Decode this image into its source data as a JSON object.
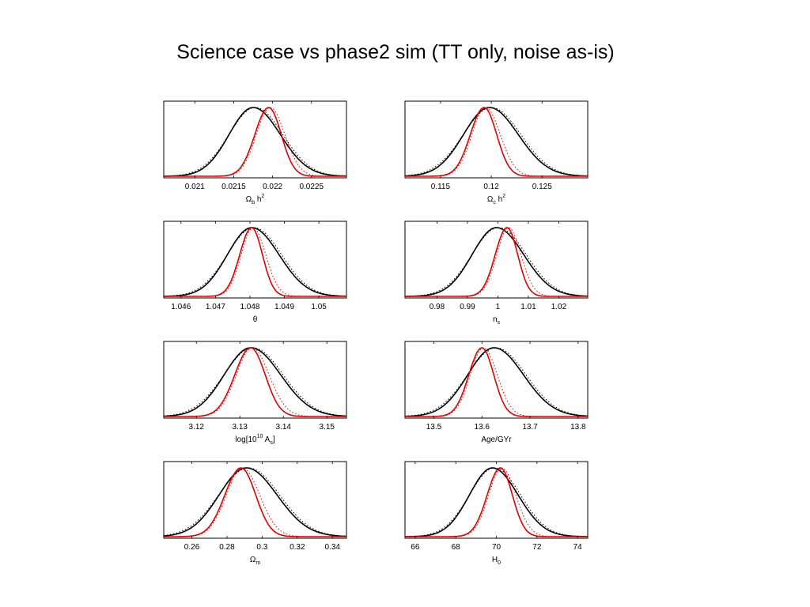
{
  "title": "Science case vs phase2 sim (TT only, noise as-is)",
  "colors": {
    "science_case": "#000000",
    "phase2_sim": "#e00000",
    "frame": "#000000"
  },
  "series_styles": {
    "science_case": "solid",
    "science_case_dotted": "dotted",
    "phase2_sim": "solid",
    "phase2_sim_dotted": "dotted"
  },
  "chart_data": [
    {
      "type": "line",
      "xlabel": {
        "base": "Ω",
        "sub": "b",
        "rest": " h",
        "sup": "2"
      },
      "xlim": [
        0.0206,
        0.02295
      ],
      "ylim": [
        0,
        1
      ],
      "ticks": [
        0.021,
        0.0215,
        0.022,
        0.0225
      ],
      "tick_labels": [
        "0.021",
        "0.0215",
        "0.022",
        "0.0225"
      ],
      "black": {
        "mean": 0.02175,
        "sigma": 0.00033
      },
      "red": {
        "mean": 0.02195,
        "sigma": 0.00017
      }
    },
    {
      "type": "line",
      "xlabel": {
        "base": "Ω",
        "sub": "c",
        "rest": " h",
        "sup": "2"
      },
      "xlim": [
        0.1115,
        0.1295
      ],
      "ylim": [
        0,
        1
      ],
      "ticks": [
        0.115,
        0.12,
        0.125
      ],
      "tick_labels": [
        "0.115",
        "0.12",
        "0.125"
      ],
      "black": {
        "mean": 0.1198,
        "sigma": 0.0027
      },
      "red": {
        "mean": 0.1193,
        "sigma": 0.0013
      }
    },
    {
      "type": "line",
      "xlabel": {
        "base": "θ",
        "sub": "",
        "rest": "",
        "sup": ""
      },
      "xlim": [
        1.0455,
        1.0508
      ],
      "ylim": [
        0,
        1
      ],
      "ticks": [
        1.046,
        1.047,
        1.048,
        1.049,
        1.05
      ],
      "tick_labels": [
        "1.046",
        "1.047",
        "1.048",
        "1.049",
        "1.05"
      ],
      "black": {
        "mean": 1.04805,
        "sigma": 0.00075
      },
      "red": {
        "mean": 1.04805,
        "sigma": 0.00033
      }
    },
    {
      "type": "line",
      "xlabel": {
        "base": "n",
        "sub": "s",
        "rest": "",
        "sup": ""
      },
      "xlim": [
        0.9695,
        1.0295
      ],
      "ylim": [
        0,
        1
      ],
      "ticks": [
        0.98,
        0.99,
        1,
        1.01,
        1.02
      ],
      "tick_labels": [
        "0.98",
        "0.99",
        "1",
        "1.01",
        "1.02"
      ],
      "black": {
        "mean": 0.9995,
        "sigma": 0.0085
      },
      "red": {
        "mean": 1.003,
        "sigma": 0.0037
      }
    },
    {
      "type": "line",
      "xlabel": {
        "base": "log[10",
        "sub": "",
        "rest": " A",
        "sup": "10",
        "sub2": "s",
        "tail": "]"
      },
      "xlim": [
        3.1125,
        3.1545
      ],
      "ylim": [
        0,
        1
      ],
      "ticks": [
        3.12,
        3.13,
        3.14,
        3.15
      ],
      "tick_labels": [
        "3.12",
        "3.13",
        "3.14",
        "3.15"
      ],
      "black": {
        "mean": 3.1325,
        "sigma": 0.0065
      },
      "red": {
        "mean": 3.1325,
        "sigma": 0.0035
      }
    },
    {
      "type": "line",
      "xlabel": {
        "base": "Age/GYr",
        "sub": "",
        "rest": "",
        "sup": ""
      },
      "xlim": [
        13.44,
        13.82
      ],
      "ylim": [
        0,
        1
      ],
      "ticks": [
        13.5,
        13.6,
        13.7,
        13.8
      ],
      "tick_labels": [
        "13.5",
        "13.6",
        "13.7",
        "13.8"
      ],
      "black": {
        "mean": 13.625,
        "sigma": 0.058
      },
      "red": {
        "mean": 13.6,
        "sigma": 0.026
      }
    },
    {
      "type": "line",
      "xlabel": {
        "base": "Ω",
        "sub": "m",
        "rest": "",
        "sup": ""
      },
      "xlim": [
        0.244,
        0.348
      ],
      "ylim": [
        0,
        1
      ],
      "ticks": [
        0.26,
        0.28,
        0.3,
        0.32,
        0.34
      ],
      "tick_labels": [
        "0.26",
        "0.28",
        "0.3",
        "0.32",
        "0.34"
      ],
      "black": {
        "mean": 0.291,
        "sigma": 0.0165
      },
      "red": {
        "mean": 0.288,
        "sigma": 0.0088
      }
    },
    {
      "type": "line",
      "xlabel": {
        "base": "H",
        "sub": "0",
        "rest": "",
        "sup": ""
      },
      "xlim": [
        65.5,
        74.5
      ],
      "ylim": [
        0,
        1
      ],
      "ticks": [
        66,
        68,
        70,
        72,
        74
      ],
      "tick_labels": [
        "66",
        "68",
        "70",
        "72",
        "74"
      ],
      "black": {
        "mean": 69.8,
        "sigma": 1.2
      },
      "red": {
        "mean": 70.2,
        "sigma": 0.62
      }
    }
  ]
}
